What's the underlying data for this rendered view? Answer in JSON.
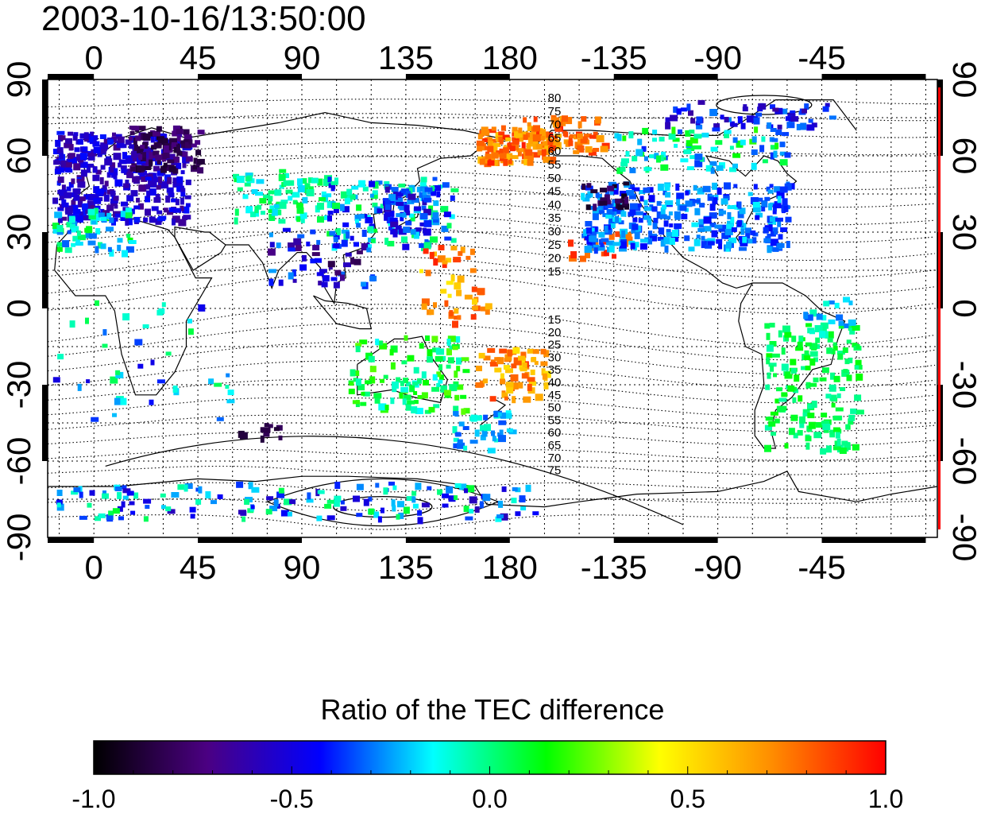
{
  "title": "2003-10-16/13:50:00",
  "colorbar": {
    "title": "Ratio of the TEC difference",
    "tick_labels": [
      "-1.0",
      "-0.5",
      "0.0",
      "0.5",
      "1.0"
    ],
    "tick_values": [
      -1.0,
      -0.5,
      0.0,
      0.5,
      1.0
    ],
    "range": [
      -1.0,
      1.0
    ],
    "colors": [
      "#000000",
      "#4b0082",
      "#0000ff",
      "#00ffff",
      "#00ff00",
      "#ffff00",
      "#ff8c00",
      "#ff0000"
    ]
  },
  "chart_data": {
    "type": "heatmap",
    "title": "2003-10-16/13:50:00",
    "x_tick_labels_top": [
      "0",
      "45",
      "90",
      "135",
      "180",
      "-135",
      "-90",
      "-45"
    ],
    "x_tick_labels_bottom": [
      "0",
      "45",
      "90",
      "135",
      "180",
      "-135",
      "-90",
      "-45"
    ],
    "y_tick_labels_left": [
      "90",
      "60",
      "30",
      "0",
      "-30",
      "-60",
      "-90"
    ],
    "y_tick_labels_right": [
      "90",
      "60",
      "30",
      "0",
      "-30",
      "-60",
      "-90"
    ],
    "xlim": [
      -20,
      365
    ],
    "ylim": [
      -90,
      90
    ],
    "grid": true,
    "contour_labels_north": [
      "80",
      "75",
      "70",
      "65",
      "60",
      "55",
      "50",
      "45",
      "40",
      "35",
      "30",
      "25",
      "20",
      "15"
    ],
    "contour_labels_south": [
      "15",
      "20",
      "25",
      "30",
      "35",
      "40",
      "45",
      "50",
      "55",
      "60",
      "65",
      "70",
      "75"
    ],
    "value_range": [
      -1.0,
      1.0
    ]
  }
}
